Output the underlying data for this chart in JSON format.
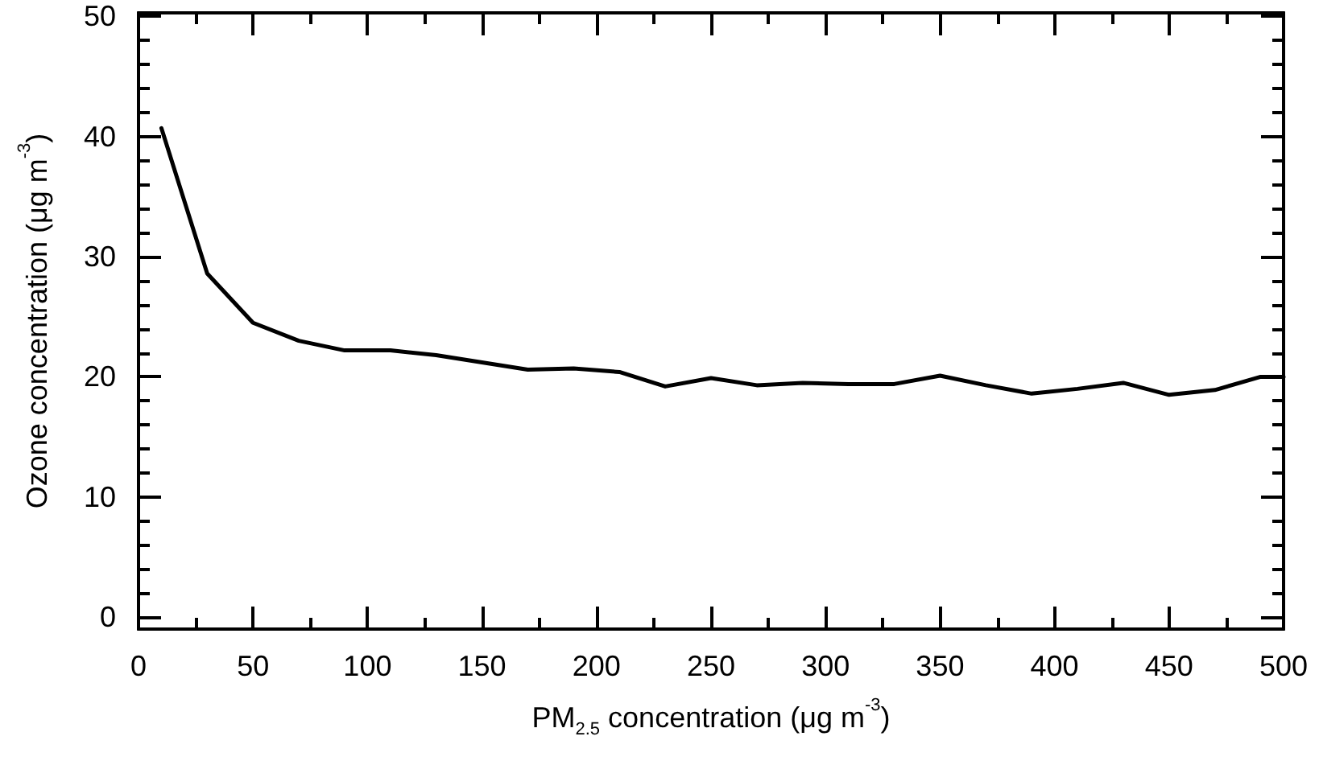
{
  "chart_data": {
    "type": "line",
    "xlabel": "PM$_{2.5}$ concentration (μg m$^{-3}$)",
    "ylabel": "Ozone concentration (μg m$^{-3}$)",
    "x": [
      10,
      30,
      50,
      70,
      90,
      110,
      130,
      150,
      170,
      190,
      210,
      230,
      250,
      270,
      290,
      310,
      330,
      350,
      370,
      390,
      410,
      430,
      450,
      470,
      490,
      500
    ],
    "series": [
      {
        "color": "#000000",
        "values": [
          40.7,
          28.6,
          24.5,
          23.0,
          22.2,
          22.2,
          21.8,
          21.2,
          20.6,
          20.7,
          20.4,
          19.2,
          19.9,
          19.3,
          19.5,
          19.4,
          19.4,
          20.1,
          19.3,
          18.6,
          19.0,
          19.5,
          18.5,
          18.9,
          20.0,
          20.0
        ]
      }
    ],
    "xlim": [
      0,
      500
    ],
    "xticks": [
      0,
      {
        "value": 25,
        "label": null
      },
      50,
      {
        "value": 75,
        "label": null
      },
      100,
      {
        "value": 125,
        "label": null
      },
      150,
      {
        "value": 175,
        "label": null
      },
      200,
      {
        "value": 225,
        "label": null
      },
      250,
      {
        "value": 275,
        "label": null
      },
      300,
      {
        "value": 325,
        "label": null
      },
      350,
      {
        "value": 375,
        "label": null
      },
      400,
      {
        "value": 425,
        "label": null
      },
      450,
      {
        "value": 475,
        "label": null
      },
      500
    ],
    "ylim": [
      -1,
      50.3
    ],
    "yticks": [
      0,
      {
        "value": 2,
        "label": null
      },
      {
        "value": 4,
        "label": null
      },
      {
        "value": 6,
        "label": null
      },
      {
        "value": 8,
        "label": null
      },
      10,
      {
        "value": 12,
        "label": null
      },
      {
        "value": 14,
        "label": null
      },
      {
        "value": 16,
        "label": null
      },
      {
        "value": 18,
        "label": null
      },
      20,
      {
        "value": 22,
        "label": null
      },
      {
        "value": 24,
        "label": null
      },
      {
        "value": 26,
        "label": null
      },
      {
        "value": 28,
        "label": null
      },
      30,
      {
        "value": 32,
        "label": null
      },
      {
        "value": 34,
        "label": null
      },
      {
        "value": 36,
        "label": null
      },
      {
        "value": 38,
        "label": null
      },
      40,
      {
        "value": 42,
        "label": null
      },
      {
        "value": 44,
        "label": null
      },
      {
        "value": 46,
        "label": null
      },
      {
        "value": 48,
        "label": null
      },
      50
    ],
    "grid": false,
    "marker": "none",
    "line_style": "solid"
  }
}
